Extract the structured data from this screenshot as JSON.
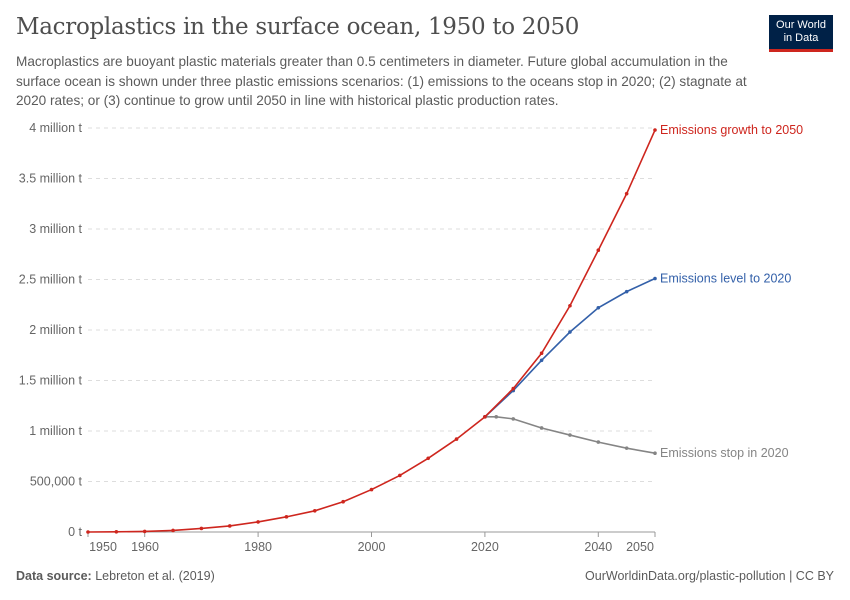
{
  "title": "Macroplastics in the surface ocean, 1950 to 2050",
  "subtitle": "Macroplastics are buoyant plastic materials greater than 0.5 centimeters in diameter. Future global accumulation in the surface ocean is shown under three plastic emissions scenarios: (1) emissions to the oceans stop in 2020; (2) stagnate at 2020 rates; or (3) continue to grow until 2050 in line with historical plastic production rates.",
  "logo": {
    "line1": "Our World",
    "line2": "in Data"
  },
  "footer": {
    "source_label": "Data source:",
    "source": "Lebreton et al. (2019)",
    "right": "OurWorldinData.org/plastic-pollution | CC BY"
  },
  "chart_data": {
    "type": "line",
    "xlim": [
      1950,
      2050
    ],
    "ylim": [
      0,
      4
    ],
    "yunit": "million t",
    "grid": "horizontal dashed",
    "x_ticks": [
      "1950",
      "1960",
      "1980",
      "2000",
      "2020",
      "2040",
      "2050"
    ],
    "y_ticks": [
      "0 t",
      "500,000 t",
      "1 million t",
      "1.5 million t",
      "2 million t",
      "2.5 million t",
      "3 million t",
      "3.5 million t",
      "4 million t"
    ],
    "legend": "inline-right",
    "series": [
      {
        "name": "Emissions growth to 2050",
        "color": "#ce261e",
        "x": [
          1950,
          1955,
          1960,
          1965,
          1970,
          1975,
          1980,
          1985,
          1990,
          1995,
          2000,
          2005,
          2010,
          2015,
          2020,
          2025,
          2030,
          2035,
          2040,
          2045,
          2050
        ],
        "y": [
          0,
          0.002,
          0.006,
          0.015,
          0.035,
          0.06,
          0.1,
          0.15,
          0.21,
          0.3,
          0.42,
          0.56,
          0.73,
          0.92,
          1.14,
          1.42,
          1.77,
          2.24,
          2.79,
          3.35,
          3.98
        ]
      },
      {
        "name": "Emissions level to 2020",
        "color": "#3360a9",
        "x": [
          2020,
          2025,
          2030,
          2035,
          2040,
          2045,
          2050
        ],
        "y": [
          1.14,
          1.4,
          1.7,
          1.98,
          2.22,
          2.38,
          2.51
        ]
      },
      {
        "name": "Emissions stop in 2020",
        "color": "#858585",
        "x": [
          2020,
          2022,
          2025,
          2030,
          2035,
          2040,
          2045,
          2050
        ],
        "y": [
          1.14,
          1.14,
          1.12,
          1.03,
          0.96,
          0.89,
          0.83,
          0.78
        ]
      }
    ]
  }
}
